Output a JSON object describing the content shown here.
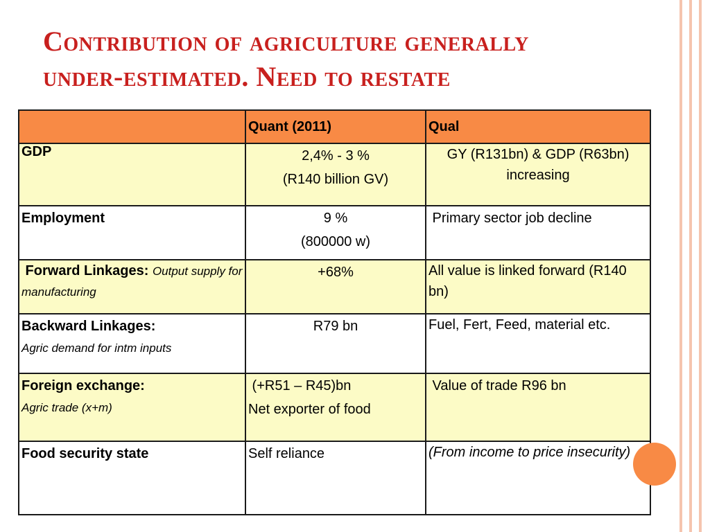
{
  "title": {
    "line1": "Contribution of agriculture generally",
    "line2": "under-estimated.  Need to restate"
  },
  "table": {
    "headers": [
      "",
      "Quant (2011)",
      "Qual"
    ],
    "rows": {
      "gdp": {
        "label": "GDP",
        "quant": [
          "2,4% - 3 %",
          "(R140 billion GV)"
        ],
        "qual": "GY (R131bn) & GDP (R63bn) increasing"
      },
      "employment": {
        "label": "Employment",
        "quant": [
          "9 %",
          "(800000 w)"
        ],
        "qual": " Primary sector job decline"
      },
      "forward": {
        "label": " Forward Linkages: ",
        "sublabel": "Output supply for manufacturing",
        "quant": [
          "+68%"
        ],
        "qual": "All value is linked forward (R140 bn)"
      },
      "backward": {
        "label": "Backward Linkages:",
        "sublabel": "Agric demand for intm inputs",
        "quant": [
          "R79 bn"
        ],
        "qual": "Fuel, Fert, Feed, material etc."
      },
      "forex": {
        "label": "Foreign exchange:",
        "sublabel": "Agric trade (x+m)",
        "quant": [
          " (+R51 – R45)bn",
          "Net exporter of food"
        ],
        "qual": " Value of trade R96 bn"
      },
      "food": {
        "label": "Food security state",
        "quant": [
          "Self reliance"
        ],
        "qual": "(From income to price insecurity)"
      }
    }
  },
  "colors": {
    "title": "#c8201e",
    "header_fill": "#f88a45",
    "row_fill_yellow": "#fcfbc6",
    "stripe": "#f5c4ae",
    "accent_dot": "#f88a45"
  }
}
